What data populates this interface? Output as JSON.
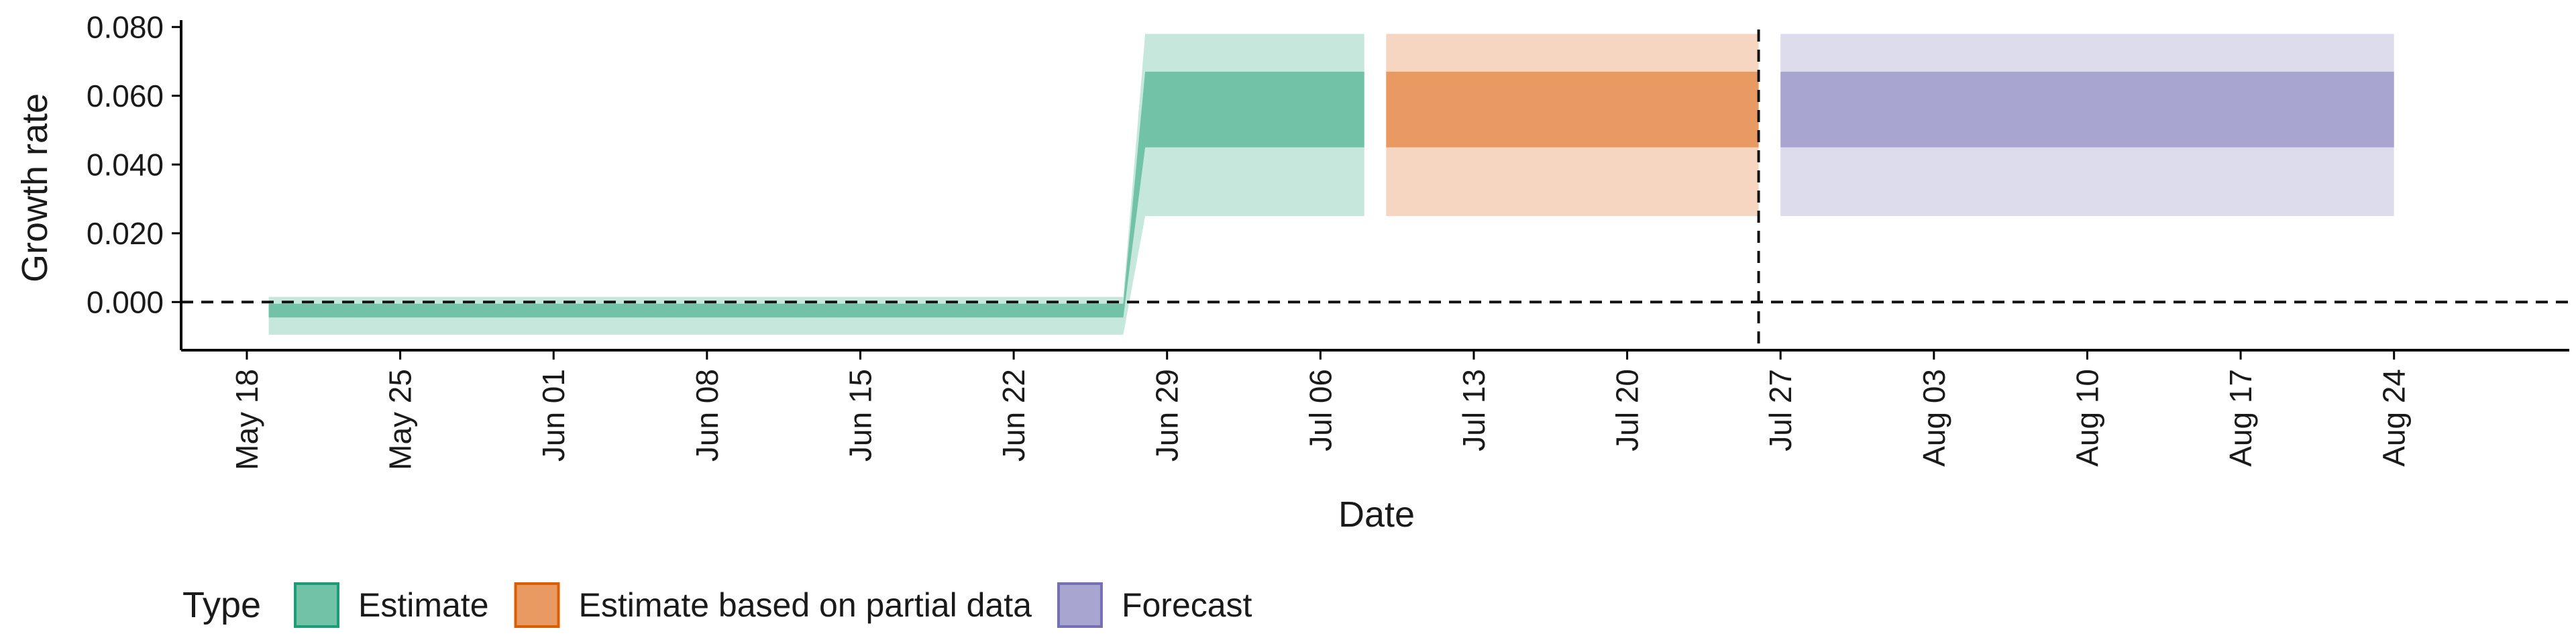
{
  "chart_data": {
    "type": "area",
    "xlabel": "Date",
    "ylabel": "Growth rate",
    "ylim": [
      -0.014,
      0.082
    ],
    "y_ticks": [
      0.0,
      0.02,
      0.04,
      0.06,
      0.08
    ],
    "y_tick_labels": [
      "0.000",
      "0.020",
      "0.040",
      "0.060",
      "0.080"
    ],
    "x_range": [
      "2020-05-15",
      "2020-09-01"
    ],
    "x_ticks": [
      "2020-05-18",
      "2020-05-25",
      "2020-06-01",
      "2020-06-08",
      "2020-06-15",
      "2020-06-22",
      "2020-06-29",
      "2020-07-06",
      "2020-07-13",
      "2020-07-20",
      "2020-07-27",
      "2020-08-03",
      "2020-08-10",
      "2020-08-17",
      "2020-08-24"
    ],
    "x_tick_labels": [
      "May 18",
      "May 25",
      "Jun 01",
      "Jun 08",
      "Jun 15",
      "Jun 22",
      "Jun 29",
      "Jul 06",
      "Jul 13",
      "Jul 20",
      "Jul 27",
      "Aug 03",
      "Aug 10",
      "Aug 17",
      "Aug 24"
    ],
    "reference_lines": {
      "horizontal_y": 0.0,
      "vertical_date": "2020-07-26"
    },
    "legend": {
      "title": "Type",
      "position": "bottom",
      "items": [
        {
          "label": "Estimate",
          "fill": "#71c2a7",
          "border": "#1b9e77"
        },
        {
          "label": "Estimate based on partial data",
          "fill": "#e89a62",
          "border": "#d95f02"
        },
        {
          "label": "Forecast",
          "fill": "#a8a6d0",
          "border": "#7570b3"
        }
      ]
    },
    "series": [
      {
        "name": "Estimate",
        "inner_color": "#71c2a7",
        "outer_color": "#c5e7dc",
        "points": [
          {
            "date": "2020-05-19",
            "outer_lower": -0.0095,
            "inner_lower": -0.0045,
            "inner_upper": -0.0005,
            "outer_upper": 0.0015
          },
          {
            "date": "2020-06-27",
            "outer_lower": -0.0095,
            "inner_lower": -0.0045,
            "inner_upper": -0.0005,
            "outer_upper": 0.0015
          },
          {
            "date": "2020-06-28",
            "outer_lower": 0.025,
            "inner_lower": 0.045,
            "inner_upper": 0.067,
            "outer_upper": 0.078
          },
          {
            "date": "2020-07-08",
            "outer_lower": 0.025,
            "inner_lower": 0.045,
            "inner_upper": 0.067,
            "outer_upper": 0.078
          }
        ]
      },
      {
        "name": "Estimate based on partial data",
        "inner_color": "#e89a62",
        "outer_color": "#f6d6c0",
        "points": [
          {
            "date": "2020-07-09",
            "outer_lower": 0.025,
            "inner_lower": 0.045,
            "inner_upper": 0.067,
            "outer_upper": 0.078
          },
          {
            "date": "2020-07-26",
            "outer_lower": 0.025,
            "inner_lower": 0.045,
            "inner_upper": 0.067,
            "outer_upper": 0.078
          }
        ]
      },
      {
        "name": "Forecast",
        "inner_color": "#a8a6d0",
        "outer_color": "#dddcec",
        "points": [
          {
            "date": "2020-07-27",
            "outer_lower": 0.025,
            "inner_lower": 0.045,
            "inner_upper": 0.067,
            "outer_upper": 0.078
          },
          {
            "date": "2020-08-24",
            "outer_lower": 0.025,
            "inner_lower": 0.045,
            "inner_upper": 0.067,
            "outer_upper": 0.078
          }
        ]
      }
    ]
  }
}
